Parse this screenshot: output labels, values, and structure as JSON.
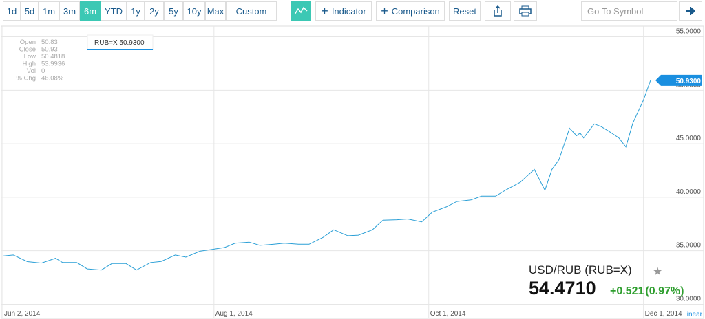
{
  "toolbar": {
    "ranges": [
      "1d",
      "5d",
      "1m",
      "3m",
      "6m",
      "YTD",
      "1y",
      "2y",
      "5y",
      "10y",
      "Max",
      "Custom"
    ],
    "active_range": "6m",
    "indicator": "Indicator",
    "comparison": "Comparison",
    "reset": "Reset",
    "symbol_placeholder": "Go To Symbol"
  },
  "info": {
    "labels": [
      "Open",
      "Close",
      "Low",
      "High",
      "Vol",
      "% Chg"
    ],
    "values": [
      "50.83",
      "50.93",
      "50.4818",
      "53.9936",
      "0",
      "46.08%"
    ],
    "tooltip": "RUB=X 50.9300",
    "last_price": "50.9300",
    "scale": "Linear"
  },
  "quote": {
    "name": "USD/RUB (RUB=X)",
    "price": "54.4710",
    "change": "+0.521",
    "change_pct": "(0.97%)"
  },
  "chart_data": {
    "type": "line",
    "x": [
      "2014-06-02",
      "2014-06-05",
      "2014-06-09",
      "2014-06-13",
      "2014-06-17",
      "2014-06-19",
      "2014-06-23",
      "2014-06-26",
      "2014-06-30",
      "2014-07-03",
      "2014-07-07",
      "2014-07-10",
      "2014-07-14",
      "2014-07-17",
      "2014-07-21",
      "2014-07-24",
      "2014-07-28",
      "2014-07-31",
      "2014-08-04",
      "2014-08-07",
      "2014-08-11",
      "2014-08-14",
      "2014-08-18",
      "2014-08-21",
      "2014-08-25",
      "2014-08-28",
      "2014-09-01",
      "2014-09-04",
      "2014-09-08",
      "2014-09-11",
      "2014-09-15",
      "2014-09-18",
      "2014-09-22",
      "2014-09-25",
      "2014-09-29",
      "2014-10-02",
      "2014-10-06",
      "2014-10-09",
      "2014-10-13",
      "2014-10-16",
      "2014-10-20",
      "2014-10-23",
      "2014-10-27",
      "2014-10-30",
      "2014-10-31",
      "2014-11-03",
      "2014-11-05",
      "2014-11-07",
      "2014-11-10",
      "2014-11-12",
      "2014-11-13",
      "2014-11-14",
      "2014-11-17",
      "2014-11-19",
      "2014-11-21",
      "2014-11-24",
      "2014-11-26",
      "2014-11-28",
      "2014-12-01",
      "2014-12-03"
    ],
    "series": [
      {
        "name": "RUB=X",
        "color": "#2a9fd6",
        "values": [
          34.5,
          34.6,
          33.98,
          33.85,
          34.3,
          33.9,
          33.9,
          33.3,
          33.2,
          33.8,
          33.8,
          33.2,
          33.9,
          34.0,
          34.6,
          34.4,
          34.95,
          35.1,
          35.3,
          35.7,
          35.8,
          35.5,
          35.6,
          35.7,
          35.6,
          35.6,
          36.25,
          36.95,
          36.4,
          36.45,
          36.95,
          37.85,
          37.9,
          37.97,
          37.7,
          38.6,
          39.1,
          39.6,
          39.75,
          40.1,
          40.1,
          40.7,
          41.4,
          42.3,
          42.6,
          40.65,
          42.6,
          43.5,
          46.45,
          45.75,
          46.0,
          45.55,
          46.85,
          46.6,
          46.2,
          45.55,
          44.7,
          46.95,
          49.1,
          50.93
        ]
      }
    ],
    "xlim": [
      "2014-06-02",
      "2014-12-04"
    ],
    "xticks": [
      {
        "value": "2014-06-02",
        "label": "Jun 2, 2014"
      },
      {
        "value": "2014-08-01",
        "label": "Aug 1, 2014"
      },
      {
        "value": "2014-10-01",
        "label": "Oct 1, 2014"
      },
      {
        "value": "2014-12-01",
        "label": "Dec 1, 2014"
      }
    ],
    "ylim": [
      29,
      56
    ],
    "yticks": [
      {
        "value": 30,
        "label": "30.0000"
      },
      {
        "value": 35,
        "label": "35.0000"
      },
      {
        "value": 40,
        "label": "40.0000"
      },
      {
        "value": 45,
        "label": "45.0000"
      },
      {
        "value": 50,
        "label": "50.0000"
      },
      {
        "value": 55,
        "label": "55.0000"
      }
    ],
    "grid": true
  }
}
